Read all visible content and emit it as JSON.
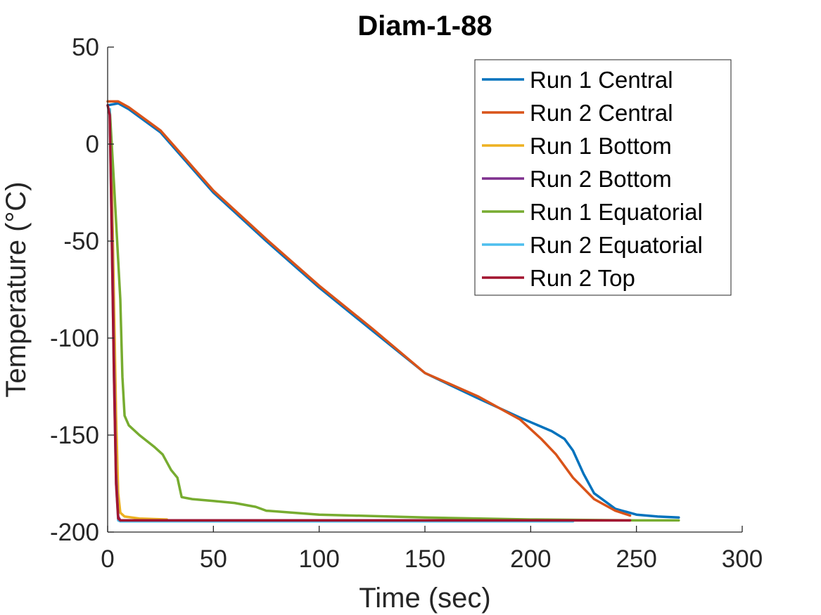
{
  "chart_data": {
    "type": "line",
    "title": "Diam-1-88",
    "xlabel": "Time (sec)",
    "ylabel": "Temperature (°C)",
    "xlim": [
      0,
      300
    ],
    "ylim": [
      -200,
      50
    ],
    "xticks": [
      0,
      50,
      100,
      150,
      200,
      250,
      300
    ],
    "yticks": [
      -200,
      -150,
      -100,
      -50,
      0,
      50
    ],
    "xtick_labels": [
      "0",
      "50",
      "100",
      "150",
      "200",
      "250",
      "300"
    ],
    "ytick_labels": [
      "-200",
      "-150",
      "-100",
      "-50",
      "0",
      "50"
    ],
    "grid": false,
    "legend_position": "top-right",
    "series": [
      {
        "name": "Run 1 Central",
        "color": "#0072BD",
        "points": [
          [
            0,
            20
          ],
          [
            5,
            21
          ],
          [
            10,
            18
          ],
          [
            25,
            6
          ],
          [
            50,
            -25
          ],
          [
            75,
            -50
          ],
          [
            100,
            -74
          ],
          [
            125,
            -96
          ],
          [
            150,
            -118
          ],
          [
            175,
            -131
          ],
          [
            195,
            -141
          ],
          [
            210,
            -148
          ],
          [
            216,
            -152
          ],
          [
            220,
            -158
          ],
          [
            225,
            -170
          ],
          [
            230,
            -180
          ],
          [
            240,
            -188
          ],
          [
            250,
            -191
          ],
          [
            260,
            -192
          ],
          [
            270,
            -192.5
          ]
        ]
      },
      {
        "name": "Run 2 Central",
        "color": "#D95319",
        "points": [
          [
            0,
            22
          ],
          [
            5,
            22
          ],
          [
            10,
            19
          ],
          [
            25,
            7
          ],
          [
            50,
            -24
          ],
          [
            75,
            -49
          ],
          [
            100,
            -73
          ],
          [
            125,
            -95
          ],
          [
            150,
            -118
          ],
          [
            175,
            -130
          ],
          [
            195,
            -142
          ],
          [
            205,
            -152
          ],
          [
            212,
            -160
          ],
          [
            220,
            -172
          ],
          [
            230,
            -183
          ],
          [
            240,
            -189
          ],
          [
            247,
            -191.5
          ]
        ]
      },
      {
        "name": "Run 1 Bottom",
        "color": "#EDB120",
        "points": [
          [
            1,
            18
          ],
          [
            2,
            -20
          ],
          [
            3,
            -80
          ],
          [
            4,
            -140
          ],
          [
            5,
            -180
          ],
          [
            6,
            -190
          ],
          [
            8,
            -192
          ],
          [
            15,
            -193
          ],
          [
            28,
            -193.5
          ]
        ]
      },
      {
        "name": "Run 2 Bottom",
        "color": "#7E2F8E",
        "points": [
          [
            1,
            18
          ],
          [
            2,
            -40
          ],
          [
            3,
            -110
          ],
          [
            4,
            -170
          ],
          [
            5,
            -192
          ],
          [
            6,
            -194
          ],
          [
            50,
            -194
          ],
          [
            150,
            -194
          ],
          [
            247,
            -194
          ]
        ]
      },
      {
        "name": "Run 1 Equatorial",
        "color": "#77AC30",
        "points": [
          [
            1,
            18
          ],
          [
            3,
            -20
          ],
          [
            5,
            -60
          ],
          [
            6,
            -80
          ],
          [
            7,
            -120
          ],
          [
            8,
            -140
          ],
          [
            10,
            -145
          ],
          [
            15,
            -150
          ],
          [
            22,
            -156
          ],
          [
            26,
            -160
          ],
          [
            30,
            -168
          ],
          [
            33,
            -172
          ],
          [
            35,
            -182
          ],
          [
            40,
            -183
          ],
          [
            50,
            -184
          ],
          [
            60,
            -185
          ],
          [
            70,
            -187
          ],
          [
            75,
            -189
          ],
          [
            100,
            -191
          ],
          [
            150,
            -192.5
          ],
          [
            200,
            -193.5
          ],
          [
            250,
            -194
          ],
          [
            270,
            -194
          ]
        ]
      },
      {
        "name": "Run 2 Equatorial",
        "color": "#4DBEEE",
        "points": [
          [
            1,
            18
          ],
          [
            2,
            -50
          ],
          [
            3,
            -120
          ],
          [
            4,
            -175
          ],
          [
            5,
            -194
          ],
          [
            6,
            -194.5
          ],
          [
            50,
            -194.5
          ],
          [
            150,
            -194.5
          ],
          [
            220,
            -194.5
          ]
        ]
      },
      {
        "name": "Run 2 Top",
        "color": "#A2142F",
        "points": [
          [
            0,
            20
          ],
          [
            1,
            15
          ],
          [
            2,
            -50
          ],
          [
            3,
            -120
          ],
          [
            4,
            -175
          ],
          [
            5,
            -193
          ],
          [
            6,
            -194
          ],
          [
            50,
            -194
          ],
          [
            150,
            -194
          ],
          [
            200,
            -194
          ],
          [
            247,
            -194
          ]
        ]
      }
    ]
  }
}
